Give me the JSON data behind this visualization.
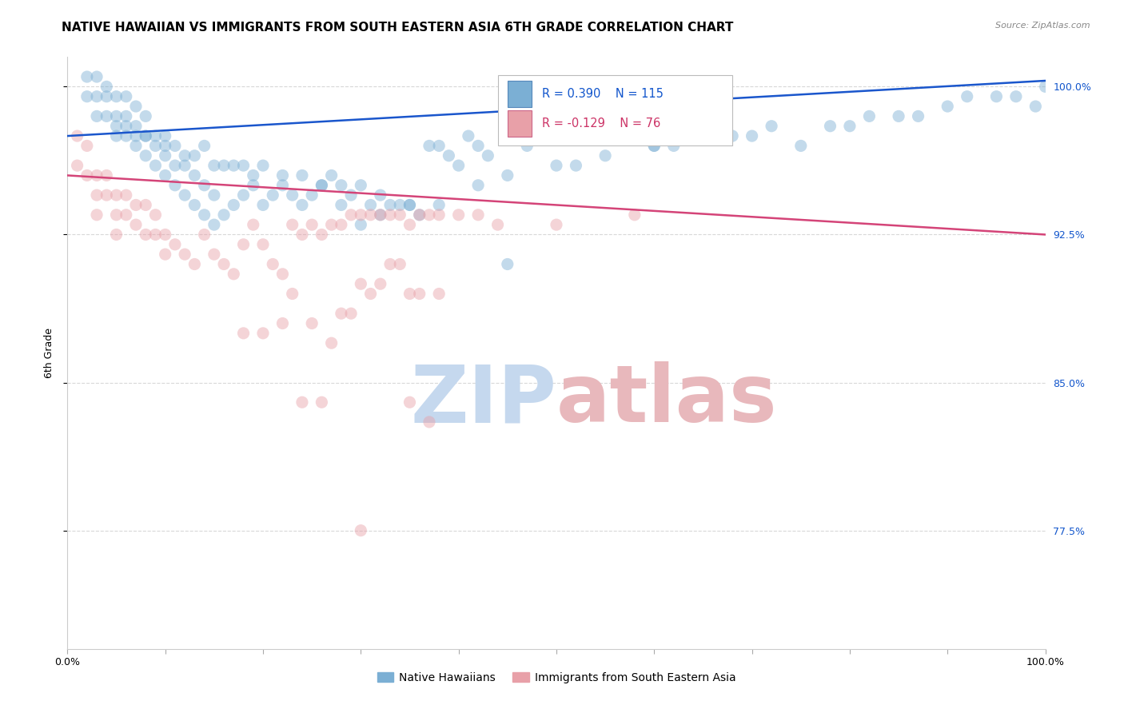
{
  "title": "NATIVE HAWAIIAN VS IMMIGRANTS FROM SOUTH EASTERN ASIA 6TH GRADE CORRELATION CHART",
  "source": "Source: ZipAtlas.com",
  "ylabel": "6th Grade",
  "xlim": [
    0.0,
    1.0
  ],
  "ylim": [
    0.715,
    1.015
  ],
  "yticks": [
    0.775,
    0.85,
    0.925,
    1.0
  ],
  "ytick_labels": [
    "77.5%",
    "85.0%",
    "92.5%",
    "100.0%"
  ],
  "xticks": [
    0.0,
    0.1,
    0.2,
    0.3,
    0.4,
    0.5,
    0.6,
    0.7,
    0.8,
    0.9,
    1.0
  ],
  "xtick_labels": [
    "0.0%",
    "",
    "",
    "",
    "",
    "",
    "",
    "",
    "",
    "",
    "100.0%"
  ],
  "blue_color": "#7bafd4",
  "pink_color": "#e8a0a8",
  "blue_line_color": "#1a56cc",
  "pink_line_color": "#d44478",
  "legend_blue_label": "Native Hawaiians",
  "legend_pink_label": "Immigrants from South Eastern Asia",
  "R_blue": 0.39,
  "N_blue": 115,
  "R_pink": -0.129,
  "N_pink": 76,
  "blue_line_y_start": 0.975,
  "blue_line_y_end": 1.003,
  "pink_line_y_start": 0.955,
  "pink_line_y_end": 0.925,
  "blue_scatter_x": [
    0.02,
    0.02,
    0.03,
    0.03,
    0.03,
    0.04,
    0.04,
    0.05,
    0.05,
    0.05,
    0.06,
    0.06,
    0.06,
    0.07,
    0.07,
    0.07,
    0.08,
    0.08,
    0.08,
    0.09,
    0.09,
    0.1,
    0.1,
    0.1,
    0.11,
    0.11,
    0.12,
    0.12,
    0.13,
    0.13,
    0.14,
    0.14,
    0.15,
    0.15,
    0.16,
    0.17,
    0.18,
    0.19,
    0.2,
    0.21,
    0.22,
    0.23,
    0.24,
    0.25,
    0.26,
    0.27,
    0.28,
    0.29,
    0.3,
    0.31,
    0.32,
    0.33,
    0.34,
    0.35,
    0.36,
    0.37,
    0.38,
    0.39,
    0.4,
    0.41,
    0.42,
    0.43,
    0.45,
    0.47,
    0.5,
    0.52,
    0.54,
    0.56,
    0.6,
    0.62,
    0.65,
    0.68,
    0.7,
    0.72,
    0.75,
    0.78,
    0.8,
    0.82,
    0.85,
    0.87,
    0.9,
    0.92,
    0.95,
    0.97,
    0.99,
    1.0,
    0.04,
    0.05,
    0.06,
    0.07,
    0.08,
    0.09,
    0.1,
    0.11,
    0.12,
    0.13,
    0.14,
    0.15,
    0.16,
    0.17,
    0.18,
    0.19,
    0.2,
    0.22,
    0.24,
    0.26,
    0.28,
    0.3,
    0.32,
    0.35,
    0.38,
    0.42,
    0.45,
    0.5,
    0.55,
    0.6
  ],
  "blue_scatter_y": [
    0.995,
    1.005,
    0.985,
    0.995,
    1.005,
    0.985,
    0.995,
    0.975,
    0.985,
    0.995,
    0.975,
    0.985,
    0.995,
    0.97,
    0.98,
    0.99,
    0.965,
    0.975,
    0.985,
    0.96,
    0.975,
    0.955,
    0.965,
    0.975,
    0.95,
    0.96,
    0.945,
    0.96,
    0.94,
    0.955,
    0.935,
    0.95,
    0.93,
    0.945,
    0.935,
    0.94,
    0.945,
    0.95,
    0.94,
    0.945,
    0.95,
    0.945,
    0.94,
    0.945,
    0.95,
    0.955,
    0.94,
    0.945,
    0.93,
    0.94,
    0.935,
    0.94,
    0.94,
    0.94,
    0.935,
    0.97,
    0.97,
    0.965,
    0.96,
    0.975,
    0.97,
    0.965,
    0.91,
    0.97,
    0.975,
    0.96,
    0.975,
    0.975,
    0.97,
    0.97,
    0.975,
    0.975,
    0.975,
    0.98,
    0.97,
    0.98,
    0.98,
    0.985,
    0.985,
    0.985,
    0.99,
    0.995,
    0.995,
    0.995,
    0.99,
    1.0,
    1.0,
    0.98,
    0.98,
    0.975,
    0.975,
    0.97,
    0.97,
    0.97,
    0.965,
    0.965,
    0.97,
    0.96,
    0.96,
    0.96,
    0.96,
    0.955,
    0.96,
    0.955,
    0.955,
    0.95,
    0.95,
    0.95,
    0.945,
    0.94,
    0.94,
    0.95,
    0.955,
    0.96,
    0.965,
    0.97
  ],
  "pink_scatter_x": [
    0.01,
    0.01,
    0.02,
    0.02,
    0.03,
    0.03,
    0.03,
    0.04,
    0.04,
    0.05,
    0.05,
    0.05,
    0.06,
    0.06,
    0.07,
    0.07,
    0.08,
    0.08,
    0.09,
    0.09,
    0.1,
    0.1,
    0.11,
    0.12,
    0.13,
    0.14,
    0.15,
    0.16,
    0.17,
    0.18,
    0.19,
    0.2,
    0.21,
    0.22,
    0.23,
    0.24,
    0.25,
    0.26,
    0.27,
    0.28,
    0.29,
    0.3,
    0.31,
    0.32,
    0.33,
    0.34,
    0.35,
    0.36,
    0.37,
    0.38,
    0.4,
    0.42,
    0.44,
    0.5,
    0.58,
    0.3,
    0.32,
    0.33,
    0.34,
    0.35,
    0.23,
    0.25,
    0.27,
    0.29,
    0.22,
    0.18,
    0.2,
    0.28,
    0.31,
    0.36,
    0.38,
    0.24,
    0.26,
    0.35,
    0.37,
    0.3
  ],
  "pink_scatter_y": [
    0.975,
    0.96,
    0.97,
    0.955,
    0.955,
    0.945,
    0.935,
    0.945,
    0.955,
    0.945,
    0.935,
    0.925,
    0.935,
    0.945,
    0.93,
    0.94,
    0.94,
    0.925,
    0.925,
    0.935,
    0.915,
    0.925,
    0.92,
    0.915,
    0.91,
    0.925,
    0.915,
    0.91,
    0.905,
    0.92,
    0.93,
    0.92,
    0.91,
    0.905,
    0.93,
    0.925,
    0.93,
    0.925,
    0.93,
    0.93,
    0.935,
    0.935,
    0.935,
    0.935,
    0.935,
    0.935,
    0.93,
    0.935,
    0.935,
    0.935,
    0.935,
    0.935,
    0.93,
    0.93,
    0.935,
    0.9,
    0.9,
    0.91,
    0.91,
    0.895,
    0.895,
    0.88,
    0.87,
    0.885,
    0.88,
    0.875,
    0.875,
    0.885,
    0.895,
    0.895,
    0.895,
    0.84,
    0.84,
    0.84,
    0.83,
    0.775
  ],
  "watermark_zip_color": "#c5d8ee",
  "watermark_atlas_color": "#e8b8bc",
  "title_fontsize": 11,
  "axis_label_fontsize": 9,
  "tick_fontsize": 9,
  "scatter_size": 120,
  "scatter_alpha": 0.45,
  "line_width": 1.8,
  "background_color": "#ffffff",
  "grid_color": "#d8d8d8"
}
